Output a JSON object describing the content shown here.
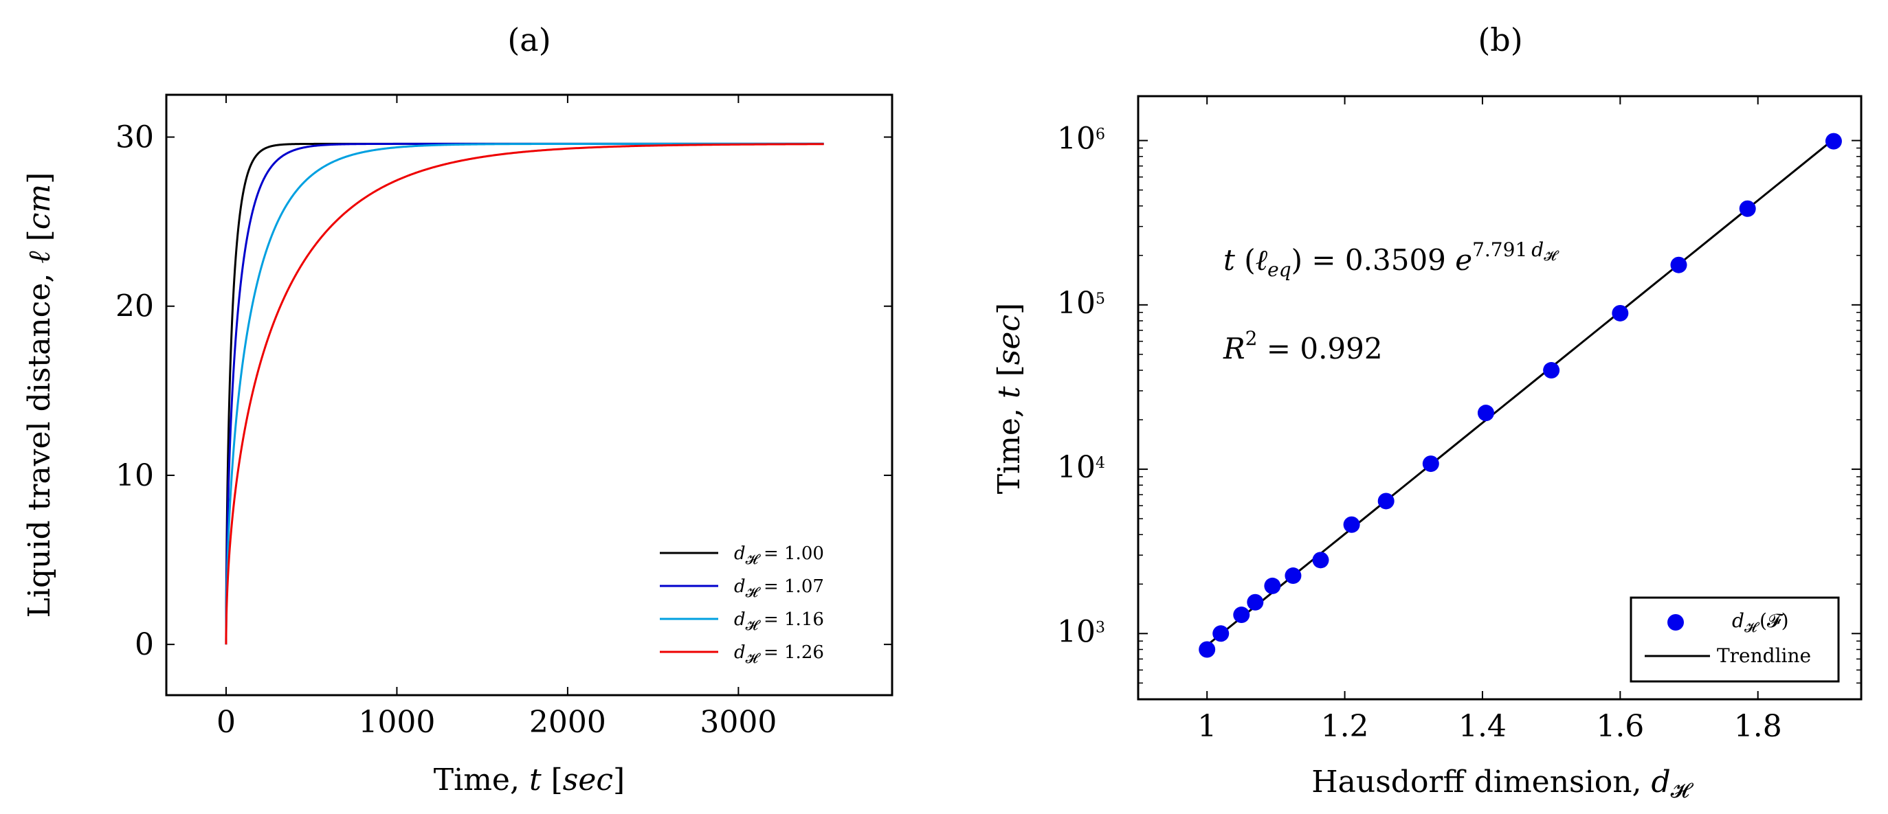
{
  "chart_data": [
    {
      "type": "line",
      "panel_label": "(a)",
      "xlabel": "Time, t [sec]",
      "xlabel_parts": [
        "Time, ",
        "t",
        " [",
        "sec",
        "]"
      ],
      "ylabel": "Liquid travel distance, ℓ [cm]",
      "ylabel_parts": [
        "Liquid travel distance, ",
        "ℓ",
        " [",
        "cm",
        "]"
      ],
      "xlim": [
        -350,
        3900
      ],
      "ylim": [
        -3,
        32.5
      ],
      "xticks": [
        0,
        1000,
        2000,
        3000
      ],
      "yticks": [
        0,
        10,
        20,
        30
      ],
      "legend_position": "bottom-right",
      "series": [
        {
          "name": "d_H = 1.00",
          "label_lhs": "d",
          "label_sub": "𝓗",
          "label_rhs": " = 1.00",
          "color": "#000000",
          "t_end": 3500,
          "tau": 55,
          "power": 0.58
        },
        {
          "name": "d_H = 1.07",
          "label_lhs": "d",
          "label_sub": "𝓗",
          "label_rhs": " = 1.07",
          "color": "#0000cc",
          "t_end": 3500,
          "tau": 105,
          "power": 0.56
        },
        {
          "name": "d_H = 1.16",
          "label_lhs": "d",
          "label_sub": "𝓗",
          "label_rhs": " = 1.16",
          "color": "#00a0e0",
          "t_end": 3500,
          "tau": 230,
          "power": 0.54
        },
        {
          "name": "d_H = 1.26",
          "label_lhs": "d",
          "label_sub": "𝓗",
          "label_rhs": " = 1.26",
          "color": "#ee0000",
          "t_end": 3500,
          "tau": 500,
          "power": 0.52
        }
      ],
      "asymptote": 29.6
    },
    {
      "type": "scatter",
      "panel_label": "(b)",
      "xlabel": "Hausdorff dimension, d_H",
      "xlabel_parts": [
        "Hausdorff dimension, ",
        "d",
        "𝓗"
      ],
      "ylabel": "Time, t [sec]",
      "ylabel_parts": [
        "Time, ",
        "t",
        " [",
        "sec",
        "]"
      ],
      "xlim": [
        0.9,
        1.95
      ],
      "ylog_lim": [
        2.6,
        6.27
      ],
      "xticks": [
        1,
        1.2,
        1.4,
        1.6,
        1.8
      ],
      "xtick_labels": [
        "1",
        "1.2",
        "1.4",
        "1.6",
        "1.8"
      ],
      "yticks_log": [
        3,
        4,
        5,
        6
      ],
      "ytick_base": "10",
      "yminor_per_decade": true,
      "points": [
        {
          "x": 1.0,
          "y": 800
        },
        {
          "x": 1.02,
          "y": 1000
        },
        {
          "x": 1.05,
          "y": 1300
        },
        {
          "x": 1.07,
          "y": 1550
        },
        {
          "x": 1.095,
          "y": 1950
        },
        {
          "x": 1.125,
          "y": 2250
        },
        {
          "x": 1.165,
          "y": 2800
        },
        {
          "x": 1.21,
          "y": 4600
        },
        {
          "x": 1.26,
          "y": 6400
        },
        {
          "x": 1.325,
          "y": 10800
        },
        {
          "x": 1.405,
          "y": 22000
        },
        {
          "x": 1.5,
          "y": 40000
        },
        {
          "x": 1.6,
          "y": 89000
        },
        {
          "x": 1.685,
          "y": 175000
        },
        {
          "x": 1.785,
          "y": 385000
        },
        {
          "x": 1.91,
          "y": 990000
        }
      ],
      "point_color": "#0000ee",
      "trendline": {
        "a": 0.3509,
        "b": 7.791,
        "x_from": 1.0,
        "x_to": 1.91
      },
      "annotation_eq": "t (ℓeq) = 0.3509 e^(7.791 dH)",
      "annotation_eq_parts": {
        "t": "t",
        "lp": " (",
        "ell": "ℓ",
        "eq": "eq",
        "rp": ")",
        "mid": " = 0.3509 ",
        "e": "e",
        "exp": "7.791",
        "d": "d",
        "h": "𝓗"
      },
      "annotation_r2": "R² = 0.992",
      "annotation_r2_parts": {
        "r": "R",
        "sup": "2",
        "rest": " = 0.992"
      },
      "legend_position": "bottom-right",
      "legend": [
        {
          "name": "d_H (F)",
          "lhs": "d",
          "sub": "𝓗",
          "rhs": "(𝓕)"
        },
        {
          "name": "Trendline",
          "lhs": "Trendline"
        }
      ]
    }
  ]
}
